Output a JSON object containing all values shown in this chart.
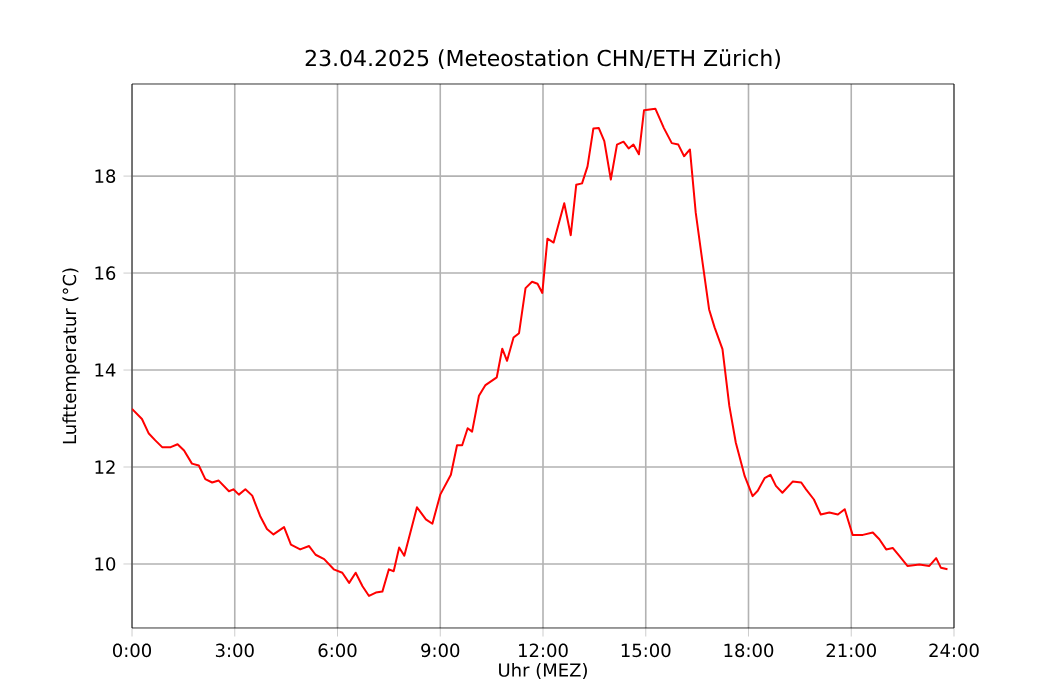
{
  "chart_data": {
    "type": "line",
    "title": "23.04.2025  (Meteostation CHN/ETH Zürich)",
    "xlabel": "Uhr (MEZ)",
    "ylabel": "Lufttemperatur (°C)",
    "xlim": [
      0,
      24
    ],
    "ylim": [
      8.68,
      19.9
    ],
    "xticks": [
      {
        "value": 0,
        "label": "0:00"
      },
      {
        "value": 3,
        "label": "3:00"
      },
      {
        "value": 6,
        "label": "6:00"
      },
      {
        "value": 9,
        "label": "9:00"
      },
      {
        "value": 12,
        "label": "12:00"
      },
      {
        "value": 15,
        "label": "15:00"
      },
      {
        "value": 18,
        "label": "18:00"
      },
      {
        "value": 21,
        "label": "21:00"
      },
      {
        "value": 24,
        "label": "24:00"
      }
    ],
    "yticks": [
      10,
      12,
      14,
      16,
      18
    ],
    "grid": true,
    "line_style": "solid",
    "marker": "none",
    "series": [
      {
        "color": "#ff0000",
        "x": [
          0,
          0.29,
          0.49,
          0.68,
          0.88,
          1.13,
          1.33,
          1.52,
          1.75,
          1.95,
          2.14,
          2.34,
          2.53,
          2.83,
          2.96,
          3.12,
          3.31,
          3.51,
          3.74,
          3.94,
          4.13,
          4.44,
          4.64,
          4.91,
          5.17,
          5.36,
          5.61,
          5.89,
          6.14,
          6.34,
          6.53,
          6.73,
          6.92,
          7.12,
          7.31,
          7.5,
          7.64,
          7.8,
          7.95,
          8.32,
          8.58,
          8.77,
          9.0,
          9.31,
          9.49,
          9.64,
          9.8,
          9.93,
          10.13,
          10.32,
          10.65,
          10.81,
          10.95,
          11.14,
          11.3,
          11.49,
          11.68,
          11.84,
          11.98,
          12.13,
          12.31,
          12.62,
          12.81,
          12.97,
          13.14,
          13.3,
          13.47,
          13.63,
          13.79,
          13.98,
          14.16,
          14.35,
          14.5,
          14.64,
          14.8,
          14.95,
          15.28,
          15.53,
          15.76,
          15.95,
          16.12,
          16.29,
          16.46,
          16.66,
          16.85,
          17.01,
          17.24,
          17.44,
          17.63,
          17.89,
          18.12,
          18.27,
          18.47,
          18.64,
          18.8,
          18.99,
          19.29,
          19.54,
          19.68,
          19.91,
          20.11,
          20.36,
          20.61,
          20.81,
          21.04,
          21.34,
          21.63,
          21.82,
          22.02,
          22.21,
          22.41,
          22.64,
          22.99,
          23.28,
          23.48,
          23.62,
          23.81
        ],
        "values": [
          13.2,
          12.99,
          12.69,
          12.55,
          12.41,
          12.41,
          12.47,
          12.34,
          12.07,
          12.03,
          11.75,
          11.68,
          11.72,
          11.5,
          11.54,
          11.43,
          11.54,
          11.41,
          10.99,
          10.72,
          10.61,
          10.76,
          10.4,
          10.3,
          10.37,
          10.19,
          10.1,
          9.89,
          9.82,
          9.61,
          9.82,
          9.54,
          9.34,
          9.41,
          9.43,
          9.89,
          9.85,
          10.34,
          10.17,
          11.17,
          10.92,
          10.83,
          11.43,
          11.84,
          12.45,
          12.45,
          12.8,
          12.73,
          13.47,
          13.69,
          13.85,
          14.44,
          14.19,
          14.67,
          14.76,
          15.69,
          15.82,
          15.78,
          15.59,
          16.71,
          16.63,
          17.44,
          16.78,
          17.82,
          17.85,
          18.2,
          18.98,
          18.99,
          18.72,
          17.93,
          18.65,
          18.71,
          18.57,
          18.65,
          18.45,
          19.36,
          19.39,
          18.99,
          18.68,
          18.65,
          18.41,
          18.55,
          17.24,
          16.21,
          15.25,
          14.88,
          14.43,
          13.26,
          12.5,
          11.81,
          11.4,
          11.51,
          11.77,
          11.84,
          11.61,
          11.47,
          11.7,
          11.68,
          11.54,
          11.33,
          11.02,
          11.06,
          11.02,
          11.13,
          10.6,
          10.6,
          10.65,
          10.51,
          10.3,
          10.33,
          10.16,
          9.96,
          9.99,
          9.96,
          10.12,
          9.92,
          9.89
        ]
      }
    ]
  }
}
